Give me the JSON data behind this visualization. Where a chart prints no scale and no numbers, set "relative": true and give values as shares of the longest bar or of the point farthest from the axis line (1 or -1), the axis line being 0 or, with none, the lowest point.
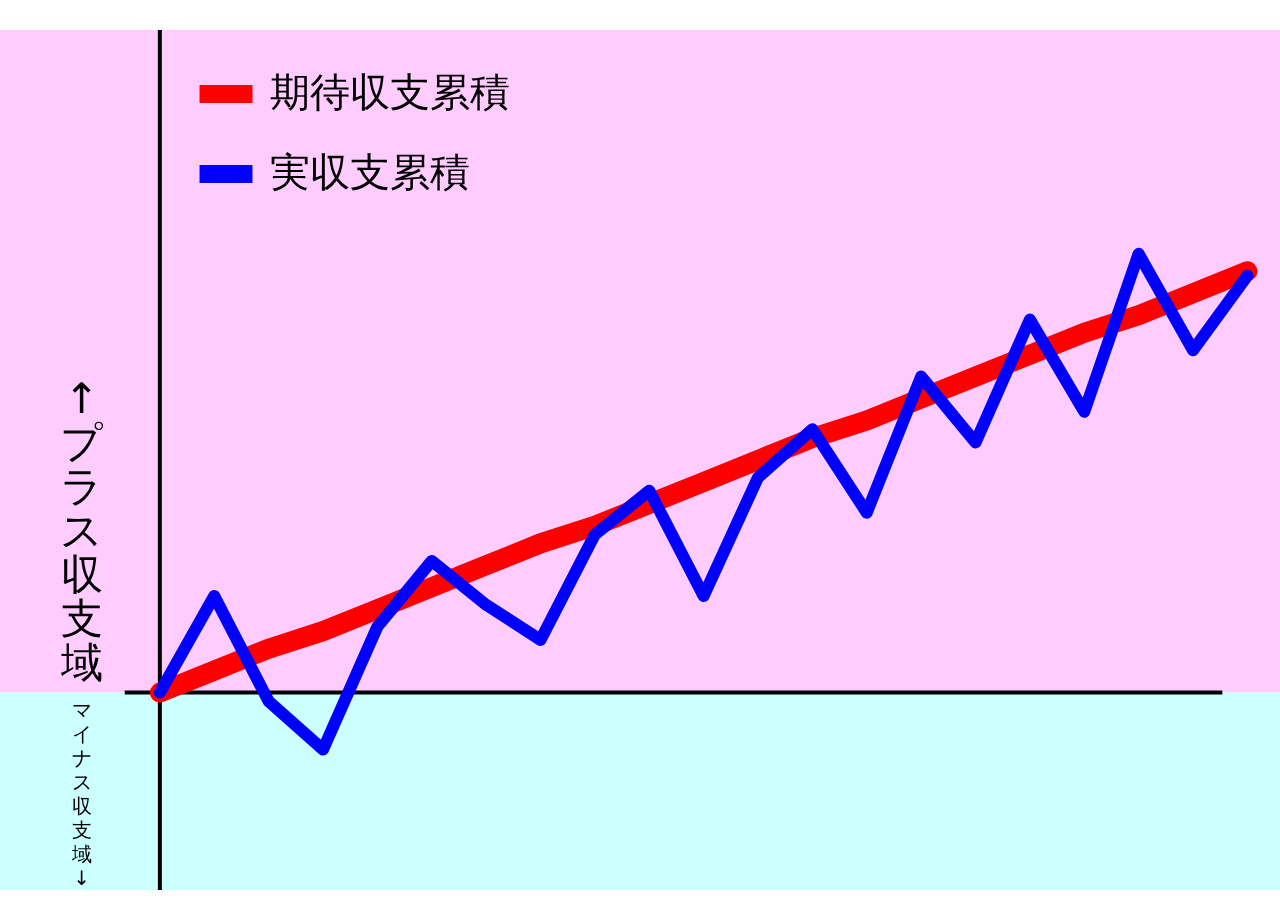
{
  "chart_data": {
    "type": "line",
    "relative": true,
    "legend": "top left",
    "categories": [
      null,
      null,
      null,
      null,
      null,
      null,
      null,
      null,
      null,
      null,
      null,
      null,
      null,
      null,
      null,
      null,
      null,
      null,
      null,
      null,
      null
    ],
    "series": [
      {
        "name": "期待収支累積",
        "color": "#ff0000",
        "values": [
          0,
          0.05,
          0.1,
          0.14,
          0.19,
          0.24,
          0.29,
          0.34,
          0.38,
          0.43,
          0.48,
          0.53,
          0.58,
          0.62,
          0.67,
          0.72,
          0.77,
          0.82,
          0.86,
          0.91,
          0.96
        ]
      },
      {
        "name": "実収支累積",
        "color": "#0000ff",
        "values": [
          0,
          0.22,
          -0.02,
          -0.13,
          0.15,
          0.3,
          0.2,
          0.12,
          0.36,
          0.46,
          0.22,
          0.49,
          0.6,
          0.41,
          0.72,
          0.57,
          0.85,
          0.64,
          1,
          0.78,
          0.95
        ]
      }
    ],
    "bands": [
      {
        "axis": "y",
        "from": 0,
        "to": 1.51,
        "color": "#ffccff",
        "label": "↑プラス収支域"
      },
      {
        "axis": "y",
        "from": -0.45,
        "to": 0,
        "color": "#ccffff",
        "label": "マイナス収支域↓"
      }
    ]
  }
}
